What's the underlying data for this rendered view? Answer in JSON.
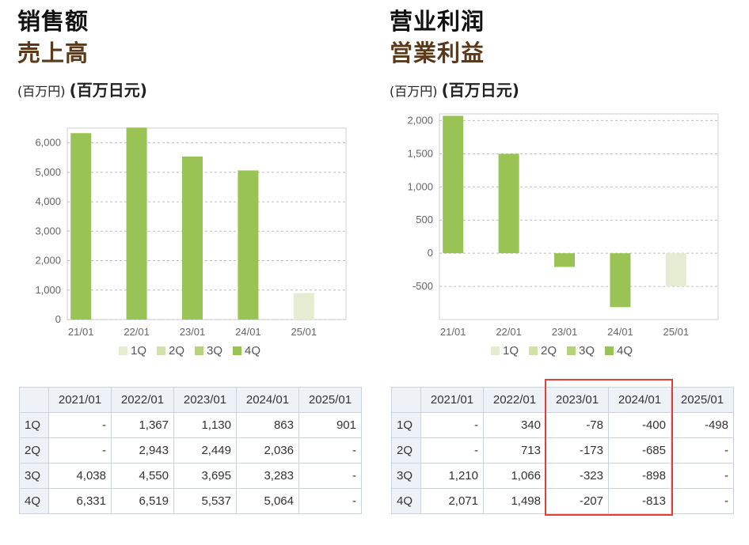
{
  "chart_data": [
    {
      "type": "bar",
      "title_cn": "销售额",
      "title_jp": "売上高",
      "unit_cn": "(百万円)",
      "unit_jp": "(百万日元)",
      "categories": [
        "21/01",
        "22/01",
        "23/01",
        "24/01",
        "25/01"
      ],
      "yticks": [
        "6,000",
        "5,000",
        "4,000",
        "3,000",
        "2,000",
        "1,000",
        "0"
      ],
      "ytick_values": [
        6000,
        5000,
        4000,
        3000,
        2000,
        1000,
        0
      ],
      "ylim": [
        0,
        6500
      ],
      "series": [
        {
          "name": "1Q",
          "color": "#e6ecd2",
          "values": [
            0,
            0,
            0,
            0,
            901
          ]
        },
        {
          "name": "2Q",
          "color": "#d3e1ad",
          "values": [
            0,
            0,
            0,
            0,
            0
          ]
        },
        {
          "name": "3Q",
          "color": "#b7d27c",
          "values": [
            0,
            0,
            0,
            0,
            0
          ]
        },
        {
          "name": "4Q",
          "color": "#9ac356",
          "values": [
            6331,
            6519,
            5537,
            5064,
            0
          ]
        }
      ],
      "table": {
        "headers": [
          "2021/01",
          "2022/01",
          "2023/01",
          "2024/01",
          "2025/01"
        ],
        "rows": [
          {
            "label": "1Q",
            "cells": [
              "-",
              "1,367",
              "1,130",
              "863",
              "901"
            ]
          },
          {
            "label": "2Q",
            "cells": [
              "-",
              "2,943",
              "2,449",
              "2,036",
              "-"
            ]
          },
          {
            "label": "3Q",
            "cells": [
              "4,038",
              "4,550",
              "3,695",
              "3,283",
              "-"
            ]
          },
          {
            "label": "4Q",
            "cells": [
              "6,331",
              "6,519",
              "5,537",
              "5,064",
              "-"
            ]
          }
        ]
      }
    },
    {
      "type": "bar",
      "title_cn": "营业利润",
      "title_jp": "営業利益",
      "unit_cn": "(百万円)",
      "unit_jp": "(百万日元)",
      "categories": [
        "21/01",
        "22/01",
        "23/01",
        "24/01",
        "25/01"
      ],
      "yticks": [
        "2,000",
        "1,500",
        "1,000",
        "500",
        "0",
        "-500"
      ],
      "ytick_values": [
        2000,
        1500,
        1000,
        500,
        0,
        -500
      ],
      "ylim": [
        -1000,
        2100
      ],
      "series": [
        {
          "name": "1Q",
          "color": "#e6ecd2",
          "values": [
            0,
            0,
            0,
            0,
            -498
          ]
        },
        {
          "name": "2Q",
          "color": "#d3e1ad",
          "values": [
            0,
            0,
            0,
            0,
            0
          ]
        },
        {
          "name": "3Q",
          "color": "#b7d27c",
          "values": [
            0,
            0,
            0,
            0,
            0
          ]
        },
        {
          "name": "4Q",
          "color": "#9ac356",
          "values": [
            2071,
            1498,
            -207,
            -813,
            0
          ]
        }
      ],
      "table": {
        "headers": [
          "2021/01",
          "2022/01",
          "2023/01",
          "2024/01",
          "2025/01"
        ],
        "rows": [
          {
            "label": "1Q",
            "cells": [
              "-",
              "340",
              "-78",
              "-400",
              "-498"
            ]
          },
          {
            "label": "2Q",
            "cells": [
              "-",
              "713",
              "-173",
              "-685",
              "-"
            ]
          },
          {
            "label": "3Q",
            "cells": [
              "1,210",
              "1,066",
              "-323",
              "-898",
              "-"
            ]
          },
          {
            "label": "4Q",
            "cells": [
              "2,071",
              "1,498",
              "-207",
              "-813",
              "-"
            ]
          }
        ]
      }
    }
  ],
  "legend": [
    "1Q",
    "2Q",
    "3Q",
    "4Q"
  ],
  "highlight_color": "#e0413a"
}
